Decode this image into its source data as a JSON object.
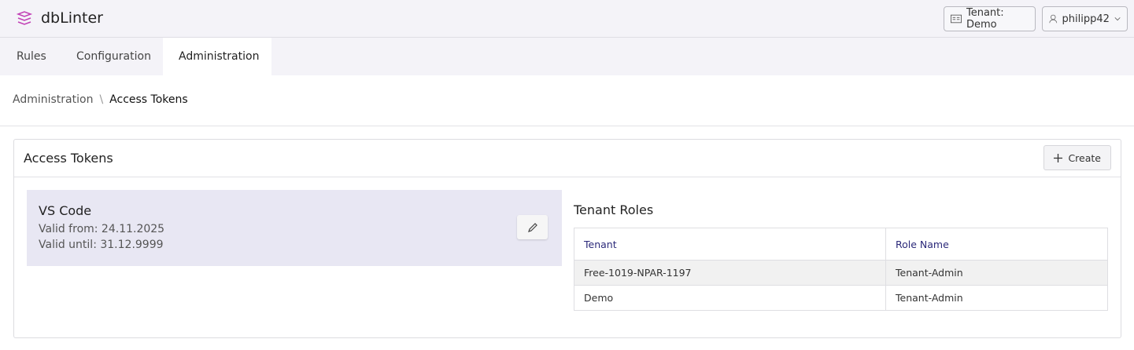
{
  "app": {
    "title": "dbLinter",
    "logo_icon": "layers-icon",
    "accent": "#c13fb5"
  },
  "header": {
    "tenant_label": "Tenant: Demo",
    "user_label": "philipp42"
  },
  "tabs": [
    {
      "label": "Rules"
    },
    {
      "label": "Configuration"
    },
    {
      "label": "Administration",
      "active": true
    }
  ],
  "breadcrumb": {
    "parent": "Administration",
    "separator": "\\",
    "current": "Access Tokens"
  },
  "card": {
    "title": "Access Tokens",
    "create_label": "Create"
  },
  "token": {
    "name": "VS Code",
    "valid_from": "Valid from: 24.11.2025",
    "valid_until": "Valid until: 31.12.9999"
  },
  "roles": {
    "title": "Tenant Roles",
    "columns": [
      "Tenant",
      "Role Name"
    ],
    "rows": [
      [
        "Free-1019-NPAR-1197",
        "Tenant-Admin"
      ],
      [
        "Demo",
        "Tenant-Admin"
      ]
    ]
  }
}
